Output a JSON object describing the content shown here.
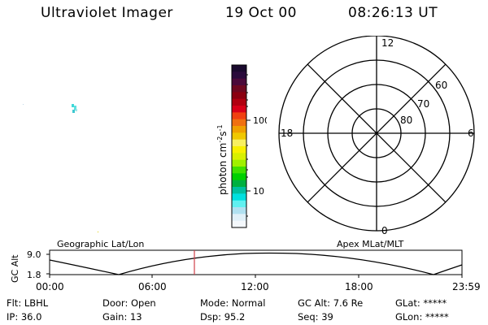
{
  "header": {
    "title": "Ultraviolet Imager",
    "date": "19 Oct 00",
    "time": "08:26:13 UT"
  },
  "colorbar": {
    "label_prefix": "photon cm",
    "label_exp1": "-2",
    "label_mid": "s",
    "label_exp2": "-1",
    "tick_upper": "100",
    "tick_lower": "10",
    "colors_top_to_bottom": [
      "#1a0a2e",
      "#2a0b3c",
      "#4b0a3a",
      "#6e0820",
      "#8b0010",
      "#b00010",
      "#d80018",
      "#f04010",
      "#f07010",
      "#f0a000",
      "#f0c800",
      "#f8f060",
      "#f8f000",
      "#d8f000",
      "#a0f000",
      "#40e000",
      "#00d000",
      "#00b040",
      "#00c0a0",
      "#00e0e0",
      "#60f0f0",
      "#b0e0f0",
      "#e0f0f8",
      "#f4f8fc"
    ]
  },
  "polar_plot": {
    "mlt_top": "12",
    "mlt_bottom": "0",
    "mlt_left": "18",
    "mlt_right": "6",
    "lat_60": "60",
    "lat_70": "70",
    "lat_80": "80"
  },
  "orbit": {
    "left_label": "Geographic Lat/Lon",
    "right_label": "Apex MLat/MLT",
    "y_title": "GC Alt",
    "y_max": "9.0",
    "y_min": "1.8",
    "x_ticks": [
      "00:00",
      "06:00",
      "12:00",
      "18:00",
      "23:59"
    ],
    "marker_time": "08:26"
  },
  "info": {
    "row1": [
      {
        "label": "Flt:",
        "value": "LBHL"
      },
      {
        "label": "Door:",
        "value": "Open"
      },
      {
        "label": "Mode:",
        "value": "Normal"
      },
      {
        "label": "GC Alt:",
        "value": "7.6 Re"
      },
      {
        "label": "GLat:",
        "value": "*****"
      }
    ],
    "row2": [
      {
        "label": "IP:",
        "value": "36.0"
      },
      {
        "label": "Gain:",
        "value": "13"
      },
      {
        "label": "Dsp:",
        "value": "95.2"
      },
      {
        "label": "Seq:",
        "value": "39"
      },
      {
        "label": "GLon:",
        "value": "*****"
      }
    ]
  },
  "colors": {
    "marker": "#d0404a",
    "spot": "#40d8d8"
  }
}
